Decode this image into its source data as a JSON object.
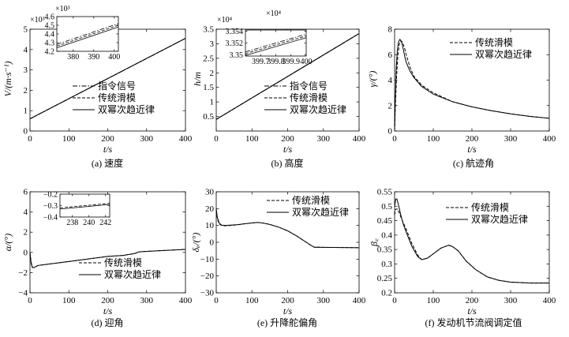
{
  "chart_data": [
    {
      "id": "a",
      "type": "line",
      "caption": "(a) 速度",
      "xlabel": "t/s",
      "ylabel": "V/(m·s⁻¹)",
      "y_multiplier": "×10³",
      "xlim": [
        0,
        400
      ],
      "ylim": [
        0,
        5
      ],
      "xticks": [
        0,
        100,
        200,
        300,
        400
      ],
      "yticks": [
        0,
        1,
        2,
        3,
        4,
        5
      ],
      "legend": [
        "指令信号",
        "传统滑模",
        "双幂次趋近律"
      ],
      "series": [
        {
          "name": "指令信号",
          "style": "dashdot",
          "x": [
            0,
            400
          ],
          "y": [
            0.6,
            4.55
          ]
        },
        {
          "name": "传统滑模",
          "style": "dashed",
          "x": [
            0,
            400
          ],
          "y": [
            0.6,
            4.55
          ]
        },
        {
          "name": "双幂次趋近律",
          "style": "solid",
          "x": [
            0,
            400
          ],
          "y": [
            0.6,
            4.55
          ]
        }
      ],
      "inset": {
        "y_multiplier": "×10³",
        "xlim": [
          372,
          402
        ],
        "ylim": [
          4.2,
          4.6
        ],
        "xticks": [
          380,
          390,
          400
        ],
        "yticks": [
          4.2,
          4.3,
          4.4,
          4.5,
          4.6
        ],
        "series": [
          {
            "style": "dashdot",
            "x": [
              372,
              402
            ],
            "y": [
              4.28,
              4.52
            ]
          },
          {
            "style": "dashed",
            "x": [
              372,
              402
            ],
            "y": [
              4.26,
              4.5
            ]
          },
          {
            "style": "solid",
            "x": [
              372,
              402
            ],
            "y": [
              4.24,
              4.48
            ]
          }
        ]
      }
    },
    {
      "id": "b",
      "type": "line",
      "caption": "(b) 高度",
      "xlabel": "t/s",
      "ylabel": "h/m",
      "y_multiplier": "×10⁴",
      "xlim": [
        0,
        400
      ],
      "ylim": [
        0,
        3.5
      ],
      "xticks": [
        0,
        100,
        200,
        300,
        400
      ],
      "yticks": [
        0.5,
        1.0,
        1.5,
        2.0,
        2.5,
        3.0,
        3.5
      ],
      "legend": [
        "指令信号",
        "传统滑模",
        "双幂次趋近律"
      ],
      "series": [
        {
          "name": "指令信号",
          "style": "dashdot",
          "x": [
            0,
            400
          ],
          "y": [
            0.4,
            3.35
          ]
        },
        {
          "name": "传统滑模",
          "style": "dashed",
          "x": [
            0,
            400
          ],
          "y": [
            0.4,
            3.35
          ]
        },
        {
          "name": "双幂次趋近律",
          "style": "solid",
          "x": [
            0,
            400
          ],
          "y": [
            0.4,
            3.35
          ]
        }
      ],
      "inset": {
        "y_multiplier": "×10⁴",
        "xlim": [
          399.6,
          400
        ],
        "ylim": [
          3.3498,
          3.3542
        ],
        "xticks": [
          399.7,
          399.8,
          399.9,
          400
        ],
        "yticks": [
          3.35,
          3.352,
          3.354
        ],
        "series": [
          {
            "style": "dashdot",
            "x": [
              399.6,
              400
            ],
            "y": [
              3.3505,
              3.3535
            ]
          },
          {
            "style": "dashed",
            "x": [
              399.6,
              400
            ],
            "y": [
              3.3502,
              3.3532
            ]
          },
          {
            "style": "solid",
            "x": [
              399.6,
              400
            ],
            "y": [
              3.3499,
              3.3529
            ]
          }
        ]
      }
    },
    {
      "id": "c",
      "type": "line",
      "caption": "(c) 航迹角",
      "xlabel": "t/s",
      "ylabel": "γ/(°)",
      "xlim": [
        0,
        400
      ],
      "ylim": [
        0,
        8
      ],
      "xticks": [
        0,
        100,
        200,
        300,
        400
      ],
      "yticks": [
        0,
        2,
        4,
        6,
        8
      ],
      "legend": [
        "传统滑模",
        "双幂次趋近律"
      ],
      "series": [
        {
          "name": "传统滑模",
          "style": "dashed",
          "x": [
            0,
            2,
            5,
            8,
            12,
            16,
            20,
            25,
            30,
            40,
            50,
            70,
            100,
            150,
            200,
            250,
            300,
            350,
            400
          ],
          "y": [
            0,
            2.0,
            4.2,
            5.8,
            6.8,
            7.1,
            7.0,
            6.6,
            6.0,
            5.0,
            4.3,
            3.6,
            3.0,
            2.3,
            1.9,
            1.6,
            1.35,
            1.15,
            1.0
          ]
        },
        {
          "name": "双幂次趋近律",
          "style": "solid",
          "x": [
            0,
            2,
            4,
            7,
            10,
            14,
            18,
            22,
            26,
            30,
            40,
            50,
            70,
            100,
            150,
            200,
            250,
            300,
            350,
            400
          ],
          "y": [
            0,
            2.5,
            4.8,
            6.3,
            7.0,
            7.2,
            7.0,
            6.5,
            5.9,
            5.4,
            4.7,
            4.2,
            3.5,
            2.9,
            2.3,
            1.9,
            1.6,
            1.35,
            1.15,
            1.0
          ]
        }
      ]
    },
    {
      "id": "d",
      "type": "line",
      "caption": "(d) 迎角",
      "xlabel": "t/s",
      "ylabel": "α/(°)",
      "xlim": [
        0,
        400
      ],
      "ylim": [
        -4,
        6
      ],
      "xticks": [
        0,
        100,
        200,
        300,
        400
      ],
      "yticks": [
        -4,
        -2,
        0,
        2,
        4,
        6
      ],
      "legend": [
        "传统滑模",
        "双幂次趋近律"
      ],
      "series": [
        {
          "name": "传统滑模",
          "style": "dashed",
          "x": [
            0,
            3,
            7,
            12,
            20,
            40,
            100,
            200,
            240,
            270,
            280,
            300,
            350,
            400
          ],
          "y": [
            0,
            -1.0,
            -1.5,
            -1.5,
            -1.3,
            -1.2,
            -0.9,
            -0.4,
            -0.3,
            -0.1,
            0.05,
            0.1,
            0.2,
            0.3
          ]
        },
        {
          "name": "双幂次趋近律",
          "style": "solid",
          "x": [
            0,
            3,
            6,
            10,
            20,
            40,
            100,
            200,
            240,
            270,
            280,
            300,
            350,
            400
          ],
          "y": [
            0,
            -1.1,
            -1.5,
            -1.5,
            -1.3,
            -1.2,
            -0.9,
            -0.4,
            -0.3,
            -0.1,
            0.05,
            0.1,
            0.2,
            0.3
          ]
        }
      ],
      "inset": {
        "xlim": [
          236.5,
          242.5
        ],
        "ylim": [
          -0.4,
          -0.2
        ],
        "xticks": [
          238,
          240,
          242
        ],
        "yticks": [
          -0.4,
          -0.3,
          -0.2
        ],
        "series": [
          {
            "style": "dashed",
            "x": [
              236.5,
              242.5
            ],
            "y": [
              -0.32,
              -0.28
            ]
          },
          {
            "style": "solid",
            "x": [
              236.5,
              242.5
            ],
            "y": [
              -0.33,
              -0.29
            ]
          }
        ]
      }
    },
    {
      "id": "e",
      "type": "line",
      "caption": "(e) 升降舵偏角",
      "xlabel": "t/s",
      "ylabel": "δₑ/(°)",
      "xlim": [
        0,
        400
      ],
      "ylim": [
        -30,
        30
      ],
      "xticks": [
        0,
        100,
        200,
        300,
        400
      ],
      "yticks": [
        -30,
        -20,
        -10,
        0,
        10,
        20,
        30
      ],
      "legend": [
        "传统滑模",
        "双幂次趋近律"
      ],
      "series": [
        {
          "name": "传统滑模",
          "style": "dashed",
          "x": [
            0,
            3,
            8,
            15,
            25,
            40,
            60,
            80,
            100,
            115,
            130,
            150,
            175,
            200,
            225,
            250,
            265,
            275,
            280,
            300,
            350,
            400
          ],
          "y": [
            19,
            14,
            11,
            10,
            9.8,
            10,
            10.4,
            11,
            11.5,
            11.8,
            11.5,
            10.6,
            9,
            6.8,
            3.8,
            0.3,
            -1.8,
            -3,
            -2.9,
            -3,
            -3.1,
            -3.2
          ]
        },
        {
          "name": "双幂次趋近律",
          "style": "solid",
          "x": [
            0,
            3,
            8,
            15,
            25,
            40,
            60,
            80,
            100,
            115,
            130,
            150,
            175,
            200,
            225,
            250,
            265,
            275,
            280,
            300,
            350,
            400
          ],
          "y": [
            20,
            15,
            11.5,
            10.2,
            10,
            10.2,
            10.5,
            11,
            11.5,
            11.8,
            11.5,
            10.6,
            9,
            6.8,
            3.8,
            0.3,
            -1.8,
            -3,
            -2.9,
            -3,
            -3.1,
            -3.2
          ]
        }
      ]
    },
    {
      "id": "f",
      "type": "line",
      "caption": "(f) 发动机节流阀调定值",
      "xlabel": "t/s",
      "ylabel": "β꜀",
      "xlim": [
        0,
        400
      ],
      "ylim": [
        0.2,
        0.55
      ],
      "xticks": [
        0,
        100,
        200,
        300,
        400
      ],
      "yticks": [
        0.2,
        0.25,
        0.3,
        0.35,
        0.4,
        0.45,
        0.5,
        0.55
      ],
      "legend": [
        "传统滑模",
        "双幂次趋近律"
      ],
      "series": [
        {
          "name": "传统滑模",
          "style": "dashed",
          "x": [
            0,
            3,
            8,
            14,
            20,
            30,
            45,
            60,
            70,
            85,
            100,
            120,
            140,
            150,
            165,
            185,
            210,
            240,
            270,
            300,
            350,
            400
          ],
          "y": [
            0.47,
            0.49,
            0.49,
            0.47,
            0.45,
            0.42,
            0.37,
            0.33,
            0.315,
            0.32,
            0.335,
            0.355,
            0.365,
            0.36,
            0.345,
            0.31,
            0.28,
            0.255,
            0.243,
            0.237,
            0.234,
            0.234
          ]
        },
        {
          "name": "双幂次趋近律",
          "style": "solid",
          "x": [
            0,
            3,
            6,
            10,
            16,
            22,
            30,
            45,
            60,
            70,
            85,
            100,
            120,
            140,
            150,
            165,
            185,
            210,
            240,
            270,
            300,
            350,
            400
          ],
          "y": [
            0.5,
            0.525,
            0.525,
            0.505,
            0.47,
            0.44,
            0.41,
            0.36,
            0.325,
            0.315,
            0.32,
            0.335,
            0.355,
            0.365,
            0.36,
            0.345,
            0.31,
            0.28,
            0.255,
            0.243,
            0.237,
            0.234,
            0.234
          ]
        }
      ]
    }
  ]
}
